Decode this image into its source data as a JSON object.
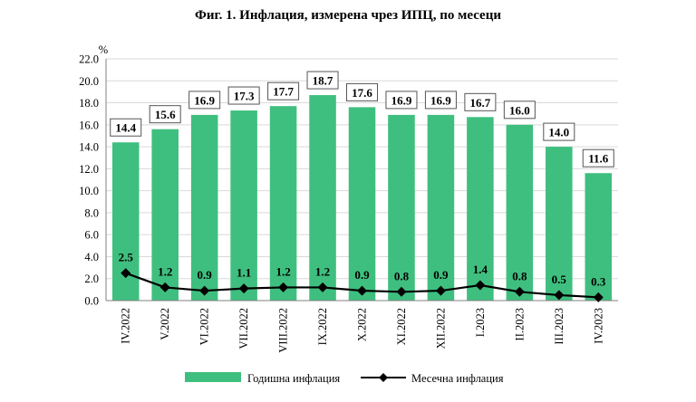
{
  "chart_data": {
    "type": "bar",
    "title": "Фиг. 1. Инфлация, измерена чрез ИПЦ, по месеци",
    "unit": "%",
    "categories": [
      "IV.2022",
      "V.2022",
      "VI.2022",
      "VII.2022",
      "VIII.2022",
      "IX.2022",
      "X.2022",
      "XI.2022",
      "XII.2022",
      "I.2023",
      "II.2023",
      "III.2023",
      "IV.2023"
    ],
    "series": [
      {
        "name": "Годишна инфлация",
        "type": "bar",
        "color": "#3fbf7f",
        "values": [
          14.4,
          15.6,
          16.9,
          17.3,
          17.7,
          18.7,
          17.6,
          16.9,
          16.9,
          16.7,
          16.0,
          14.0,
          11.6
        ],
        "labels": [
          "14.4",
          "15.6",
          "16.9",
          "17.3",
          "17.7",
          "18.7",
          "17.6",
          "16.9",
          "16.9",
          "16.7",
          "16.0",
          "14.0",
          "11.6"
        ]
      },
      {
        "name": "Месечна инфлация",
        "type": "line",
        "color": "#000000",
        "values": [
          2.5,
          1.2,
          0.9,
          1.1,
          1.2,
          1.2,
          0.9,
          0.8,
          0.9,
          1.4,
          0.8,
          0.5,
          0.3
        ],
        "labels": [
          "2.5",
          "1.2",
          "0.9",
          "1.1",
          "1.2",
          "1.2",
          "0.9",
          "0.8",
          "0.9",
          "1.4",
          "0.8",
          "0.5",
          "0.3"
        ]
      }
    ],
    "ylim": [
      0,
      22
    ],
    "yticks": [
      "0.0",
      "2.0",
      "4.0",
      "6.0",
      "8.0",
      "10.0",
      "12.0",
      "14.0",
      "16.0",
      "18.0",
      "20.0",
      "22.0"
    ],
    "grid": true,
    "legend_position": "bottom"
  }
}
